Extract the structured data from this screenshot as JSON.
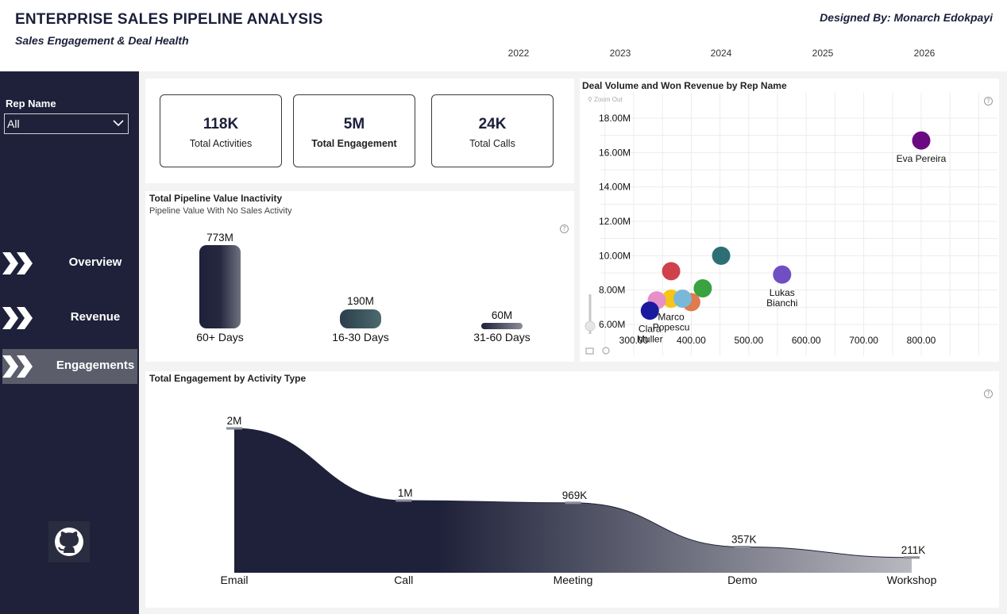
{
  "header": {
    "title": "ENTERPRISE SALES PIPELINE ANALYSIS",
    "subtitle": "Sales Engagement & Deal Health",
    "designer": "Designed By: Monarch Edokpayi",
    "years": [
      "2022",
      "2023",
      "2024",
      "2025",
      "2026"
    ]
  },
  "sidebar": {
    "filter_label": "Rep Name",
    "filter_value": "All",
    "nav": [
      {
        "label": "Overview",
        "active": false
      },
      {
        "label": "Revenue",
        "active": false
      },
      {
        "label": "Engagements",
        "active": true
      }
    ]
  },
  "kpis": [
    {
      "value": "118K",
      "label": "Total Activities"
    },
    {
      "value": "5M",
      "label": "Total Engagement"
    },
    {
      "value": "24K",
      "label": "Total Calls"
    }
  ],
  "pipeline": {
    "title": "Total Pipeline Value Inactivity",
    "subtitle": "Pipeline Value With No Sales Activity",
    "items": [
      {
        "value": "773M",
        "label": "60+ Days",
        "amount": 773
      },
      {
        "value": "190M",
        "label": "16-30 Days",
        "amount": 190
      },
      {
        "value": "60M",
        "label": "31-60 Days",
        "amount": 60
      }
    ]
  },
  "scatter": {
    "title": "Deal Volume and Won Revenue by Rep Name",
    "zoom_out": "Zoom Out",
    "help": "?"
  },
  "engagement": {
    "title": "Total Engagement by Activity Type",
    "help": "?"
  },
  "chart_data": [
    {
      "type": "scatter",
      "title": "Deal Volume and Won Revenue by Rep Name",
      "xlabel": "",
      "ylabel": "",
      "x_ticks": [
        "300.00",
        "400.00",
        "500.00",
        "600.00",
        "700.00",
        "800.00"
      ],
      "y_ticks": [
        "6.00M",
        "8.00M",
        "10.00M",
        "12.00M",
        "14.00M",
        "16.00M",
        "18.00M"
      ],
      "xlim": [
        285,
        880
      ],
      "ylim": [
        5.6,
        18.5
      ],
      "grid": true,
      "points": [
        {
          "name": "Eva Pereira",
          "x": 800,
          "y": 16.7,
          "color": "#6a0a80",
          "label": "Eva Pereira"
        },
        {
          "name": "",
          "x": 452,
          "y": 10.0,
          "color": "#2e6f75",
          "label": ""
        },
        {
          "name": "Lukas Bianchi",
          "x": 558,
          "y": 8.9,
          "color": "#6f4fc3",
          "label": "Lukas\nBianchi"
        },
        {
          "name": "",
          "x": 365,
          "y": 9.1,
          "color": "#d0414b",
          "label": ""
        },
        {
          "name": "",
          "x": 420,
          "y": 8.1,
          "color": "#3aa23f",
          "label": ""
        },
        {
          "name": "Marco Popescu",
          "x": 365,
          "y": 7.5,
          "color": "#f5c518",
          "label": "Marco\nPopescu"
        },
        {
          "name": "",
          "x": 400,
          "y": 7.3,
          "color": "#e07a4f",
          "label": ""
        },
        {
          "name": "",
          "x": 340,
          "y": 7.4,
          "color": "#e68fc9",
          "label": ""
        },
        {
          "name": "",
          "x": 385,
          "y": 7.5,
          "color": "#7ab8d8",
          "label": ""
        },
        {
          "name": "Clara Muller",
          "x": 328,
          "y": 6.8,
          "color": "#1a1a9e",
          "label": "Clara\nMuller"
        }
      ]
    },
    {
      "type": "area",
      "title": "Total Engagement by Activity Type",
      "categories": [
        "Email",
        "Call",
        "Meeting",
        "Demo",
        "Workshop"
      ],
      "values": [
        2000000,
        1000000,
        969000,
        357000,
        211000
      ],
      "data_labels": [
        "2M",
        "1M",
        "969K",
        "357K",
        "211K"
      ],
      "ylim": [
        0,
        2000000
      ]
    }
  ]
}
